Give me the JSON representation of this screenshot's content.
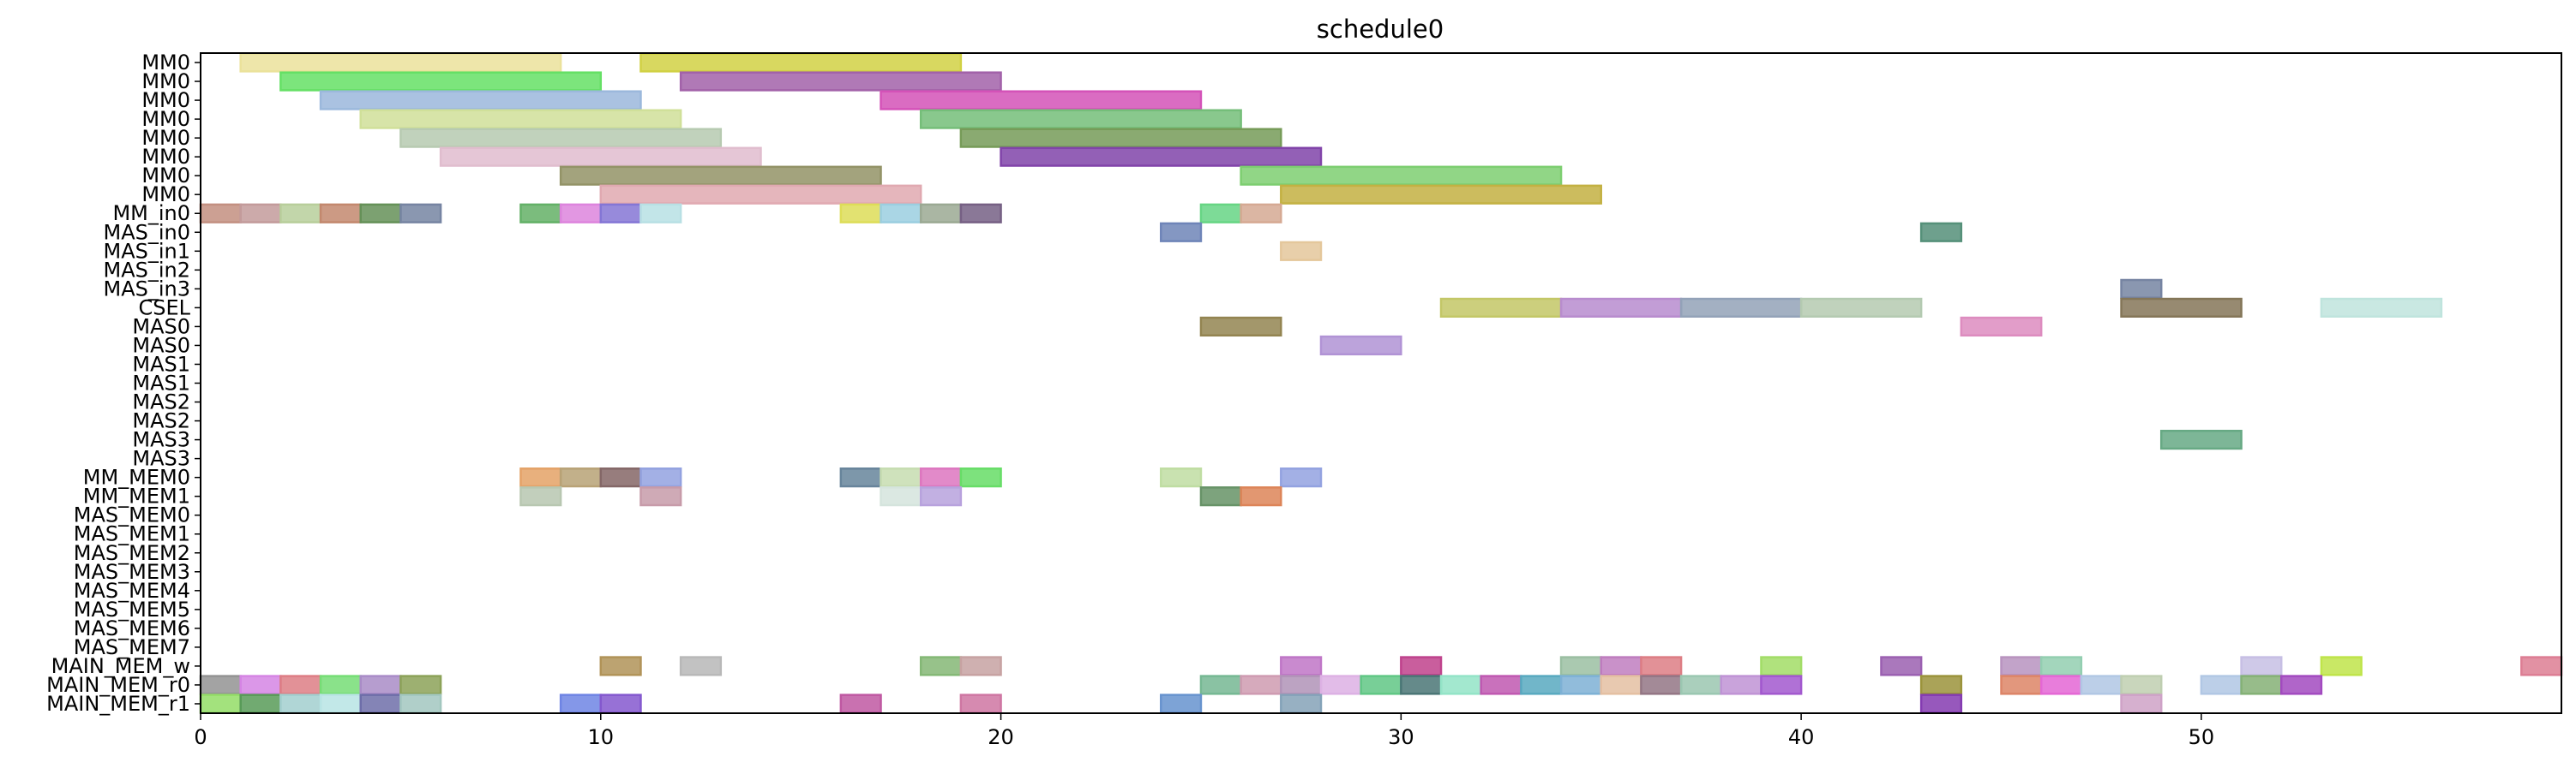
{
  "chart_data": {
    "type": "gantt",
    "title": "schedule0",
    "xlabel": "",
    "ylabel": "",
    "xlim": [
      0,
      59
    ],
    "x_ticks": [
      0,
      10,
      20,
      30,
      40,
      50
    ],
    "rows": [
      "MM0",
      "MM0",
      "MM0",
      "MM0",
      "MM0",
      "MM0",
      "MM0",
      "MM0",
      "MM_in0",
      "MAS_in0",
      "MAS_in1",
      "MAS_in2",
      "MAS_in3",
      "CSEL",
      "MAS0",
      "MAS0",
      "MAS1",
      "MAS1",
      "MAS2",
      "MAS2",
      "MAS3",
      "MAS3",
      "MM_MEM0",
      "MM_MEM1",
      "MAS_MEM0",
      "MAS_MEM1",
      "MAS_MEM2",
      "MAS_MEM3",
      "MAS_MEM4",
      "MAS_MEM5",
      "MAS_MEM6",
      "MAS_MEM7",
      "MAIN_MEM_w",
      "MAIN_MEM_r0",
      "MAIN_MEM_r1"
    ],
    "tasks": [
      {
        "row": 0,
        "start": 1,
        "end": 9,
        "color": "#fff6a8"
      },
      {
        "row": 0,
        "start": 11,
        "end": 19,
        "color": "#e3e34a"
      },
      {
        "row": 1,
        "start": 2,
        "end": 10,
        "color": "#6ef46e"
      },
      {
        "row": 1,
        "start": 12,
        "end": 20,
        "color": "#b06ab8"
      },
      {
        "row": 2,
        "start": 3,
        "end": 11,
        "color": "#a9c8ef"
      },
      {
        "row": 2,
        "start": 17,
        "end": 25,
        "color": "#e659c8"
      },
      {
        "row": 3,
        "start": 4,
        "end": 12,
        "color": "#e2f3a6"
      },
      {
        "row": 3,
        "start": 18,
        "end": 26,
        "color": "#7fcf84"
      },
      {
        "row": 4,
        "start": 5,
        "end": 13,
        "color": "#c7dcc0"
      },
      {
        "row": 4,
        "start": 19,
        "end": 27,
        "color": "#80a860"
      },
      {
        "row": 5,
        "start": 6,
        "end": 14,
        "color": "#f4cde0"
      },
      {
        "row": 5,
        "start": 20,
        "end": 28,
        "color": "#8c4ab8"
      },
      {
        "row": 6,
        "start": 9,
        "end": 17,
        "color": "#a0a070"
      },
      {
        "row": 6,
        "start": 26,
        "end": 34,
        "color": "#88e07a"
      },
      {
        "row": 7,
        "start": 10,
        "end": 18,
        "color": "#f4b8c0"
      },
      {
        "row": 7,
        "start": 27,
        "end": 35,
        "color": "#d4c048"
      },
      {
        "row": 8,
        "start": 0,
        "end": 1,
        "color": "#d49c8c"
      },
      {
        "row": 8,
        "start": 1,
        "end": 2,
        "color": "#d4a8a8"
      },
      {
        "row": 8,
        "start": 2,
        "end": 3,
        "color": "#c8e0a8"
      },
      {
        "row": 8,
        "start": 3,
        "end": 4,
        "color": "#d49478"
      },
      {
        "row": 8,
        "start": 4,
        "end": 5,
        "color": "#6e9e60"
      },
      {
        "row": 8,
        "start": 5,
        "end": 6,
        "color": "#8090b0"
      },
      {
        "row": 8,
        "start": 8,
        "end": 9,
        "color": "#6cc070"
      },
      {
        "row": 8,
        "start": 9,
        "end": 10,
        "color": "#f090f0"
      },
      {
        "row": 8,
        "start": 10,
        "end": 11,
        "color": "#9080e8"
      },
      {
        "row": 8,
        "start": 11,
        "end": 12,
        "color": "#c8f4f8"
      },
      {
        "row": 8,
        "start": 16,
        "end": 17,
        "color": "#f0f060"
      },
      {
        "row": 8,
        "start": 17,
        "end": 18,
        "color": "#a8e0f4"
      },
      {
        "row": 8,
        "start": 18,
        "end": 19,
        "color": "#a8b8a0"
      },
      {
        "row": 8,
        "start": 19,
        "end": 20,
        "color": "#806890"
      },
      {
        "row": 8,
        "start": 25,
        "end": 26,
        "color": "#70e890"
      },
      {
        "row": 8,
        "start": 26,
        "end": 27,
        "color": "#e8b8a0"
      },
      {
        "row": 9,
        "start": 24,
        "end": 25,
        "color": "#7890c8"
      },
      {
        "row": 9,
        "start": 43,
        "end": 44,
        "color": "#5c9c84"
      },
      {
        "row": 10,
        "start": 27,
        "end": 28,
        "color": "#f8d8a8"
      },
      {
        "row": 12,
        "start": 48,
        "end": 49,
        "color": "#8090b0"
      },
      {
        "row": 13,
        "start": 31,
        "end": 34,
        "color": "#d4d870"
      },
      {
        "row": 13,
        "start": 34,
        "end": 37,
        "color": "#c898e0"
      },
      {
        "row": 13,
        "start": 37,
        "end": 40,
        "color": "#a0b0c8"
      },
      {
        "row": 13,
        "start": 40,
        "end": 43,
        "color": "#c4dcc0"
      },
      {
        "row": 13,
        "start": 48,
        "end": 51,
        "color": "#908060"
      },
      {
        "row": 13,
        "start": 53,
        "end": 56,
        "color": "#d0f8f0"
      },
      {
        "row": 14,
        "start": 25,
        "end": 27,
        "color": "#a09058"
      },
      {
        "row": 14,
        "start": 44,
        "end": 46,
        "color": "#f098d0"
      },
      {
        "row": 15,
        "start": 28,
        "end": 30,
        "color": "#c0a0e8"
      },
      {
        "row": 20,
        "start": 49,
        "end": 51,
        "color": "#70b890"
      },
      {
        "row": 22,
        "start": 8,
        "end": 9,
        "color": "#f8b070"
      },
      {
        "row": 22,
        "start": 9,
        "end": 10,
        "color": "#c8b080"
      },
      {
        "row": 22,
        "start": 10,
        "end": 11,
        "color": "#907070"
      },
      {
        "row": 22,
        "start": 11,
        "end": 12,
        "color": "#a0b0f4"
      },
      {
        "row": 22,
        "start": 16,
        "end": 17,
        "color": "#7090a8"
      },
      {
        "row": 22,
        "start": 17,
        "end": 18,
        "color": "#d8f0c0"
      },
      {
        "row": 22,
        "start": 18,
        "end": 19,
        "color": "#f080d0"
      },
      {
        "row": 22,
        "start": 19,
        "end": 20,
        "color": "#70f070"
      },
      {
        "row": 22,
        "start": 24,
        "end": 25,
        "color": "#d0f0b0"
      },
      {
        "row": 22,
        "start": 27,
        "end": 28,
        "color": "#a0b0f4"
      },
      {
        "row": 23,
        "start": 8,
        "end": 9,
        "color": "#c8d8c0"
      },
      {
        "row": 23,
        "start": 11,
        "end": 12,
        "color": "#d8a8b8"
      },
      {
        "row": 23,
        "start": 17,
        "end": 18,
        "color": "#e8f8f0"
      },
      {
        "row": 23,
        "start": 18,
        "end": 19,
        "color": "#c8b0f0"
      },
      {
        "row": 23,
        "start": 25,
        "end": 26,
        "color": "#70a070"
      },
      {
        "row": 23,
        "start": 26,
        "end": 27,
        "color": "#f09060"
      },
      {
        "row": 32,
        "start": 10,
        "end": 11,
        "color": "#c0a060"
      },
      {
        "row": 32,
        "start": 12,
        "end": 13,
        "color": "#c8c8c8"
      },
      {
        "row": 32,
        "start": 18,
        "end": 19,
        "color": "#90c880"
      },
      {
        "row": 32,
        "start": 19,
        "end": 20,
        "color": "#d8b0b0"
      },
      {
        "row": 32,
        "start": 27,
        "end": 28,
        "color": "#d080d8"
      },
      {
        "row": 32,
        "start": 30,
        "end": 31,
        "color": "#d04898"
      },
      {
        "row": 32,
        "start": 34,
        "end": 35,
        "color": "#a8d0b0"
      },
      {
        "row": 32,
        "start": 35,
        "end": 36,
        "color": "#d088d0"
      },
      {
        "row": 32,
        "start": 36,
        "end": 37,
        "color": "#f08890"
      },
      {
        "row": 32,
        "start": 39,
        "end": 40,
        "color": "#b0f070"
      },
      {
        "row": 32,
        "start": 42,
        "end": 43,
        "color": "#a868c0"
      },
      {
        "row": 32,
        "start": 45,
        "end": 46,
        "color": "#c8a0d0"
      },
      {
        "row": 32,
        "start": 46,
        "end": 47,
        "color": "#a0e0c0"
      },
      {
        "row": 32,
        "start": 51,
        "end": 52,
        "color": "#d8d0f8"
      },
      {
        "row": 32,
        "start": 53,
        "end": 54,
        "color": "#d0f850"
      },
      {
        "row": 32,
        "start": 58,
        "end": 59,
        "color": "#f088a0"
      },
      {
        "row": 33,
        "start": 0,
        "end": 1,
        "color": "#a0a0a0"
      },
      {
        "row": 33,
        "start": 1,
        "end": 2,
        "color": "#e890f8"
      },
      {
        "row": 33,
        "start": 2,
        "end": 3,
        "color": "#f08890"
      },
      {
        "row": 33,
        "start": 3,
        "end": 4,
        "color": "#80f080"
      },
      {
        "row": 33,
        "start": 4,
        "end": 5,
        "color": "#b898d8"
      },
      {
        "row": 33,
        "start": 5,
        "end": 6,
        "color": "#98b060"
      },
      {
        "row": 33,
        "start": 25,
        "end": 26,
        "color": "#80c8a0"
      },
      {
        "row": 33,
        "start": 26,
        "end": 27,
        "color": "#e0a8c0"
      },
      {
        "row": 33,
        "start": 27,
        "end": 28,
        "color": "#c0a0c8"
      },
      {
        "row": 33,
        "start": 28,
        "end": 29,
        "color": "#f0c0f8"
      },
      {
        "row": 33,
        "start": 29,
        "end": 30,
        "color": "#68d890"
      },
      {
        "row": 33,
        "start": 30,
        "end": 31,
        "color": "#508080"
      },
      {
        "row": 33,
        "start": 31,
        "end": 32,
        "color": "#a0f8d8"
      },
      {
        "row": 33,
        "start": 32,
        "end": 33,
        "color": "#d060c0"
      },
      {
        "row": 33,
        "start": 33,
        "end": 34,
        "color": "#60b8d0"
      },
      {
        "row": 33,
        "start": 34,
        "end": 35,
        "color": "#88c0e8"
      },
      {
        "row": 33,
        "start": 35,
        "end": 36,
        "color": "#f8d0b0"
      },
      {
        "row": 33,
        "start": 36,
        "end": 37,
        "color": "#a08090"
      },
      {
        "row": 33,
        "start": 37,
        "end": 38,
        "color": "#a8d8c0"
      },
      {
        "row": 33,
        "start": 38,
        "end": 39,
        "color": "#d0a0e8"
      },
      {
        "row": 33,
        "start": 39,
        "end": 40,
        "color": "#b060e0"
      },
      {
        "row": 33,
        "start": 43,
        "end": 44,
        "color": "#a8a040"
      },
      {
        "row": 33,
        "start": 45,
        "end": 46,
        "color": "#f09070"
      },
      {
        "row": 33,
        "start": 46,
        "end": 47,
        "color": "#f870e8"
      },
      {
        "row": 33,
        "start": 47,
        "end": 48,
        "color": "#c0d8f8"
      },
      {
        "row": 33,
        "start": 48,
        "end": 49,
        "color": "#d0e0c0"
      },
      {
        "row": 33,
        "start": 50,
        "end": 51,
        "color": "#c0d8f8"
      },
      {
        "row": 33,
        "start": 51,
        "end": 52,
        "color": "#90c080"
      },
      {
        "row": 33,
        "start": 52,
        "end": 53,
        "color": "#b050d0"
      },
      {
        "row": 34,
        "start": 0,
        "end": 1,
        "color": "#a0f070"
      },
      {
        "row": 34,
        "start": 1,
        "end": 2,
        "color": "#60a860"
      },
      {
        "row": 34,
        "start": 2,
        "end": 3,
        "color": "#b0e0e0"
      },
      {
        "row": 34,
        "start": 3,
        "end": 4,
        "color": "#c8f8f8"
      },
      {
        "row": 34,
        "start": 4,
        "end": 5,
        "color": "#7878b8"
      },
      {
        "row": 34,
        "start": 5,
        "end": 6,
        "color": "#b0d8d0"
      },
      {
        "row": 34,
        "start": 9,
        "end": 10,
        "color": "#7890f8"
      },
      {
        "row": 34,
        "start": 10,
        "end": 11,
        "color": "#9060e0"
      },
      {
        "row": 34,
        "start": 16,
        "end": 17,
        "color": "#d060b0"
      },
      {
        "row": 34,
        "start": 19,
        "end": 20,
        "color": "#e080b0"
      },
      {
        "row": 34,
        "start": 24,
        "end": 25,
        "color": "#70a0e0"
      },
      {
        "row": 34,
        "start": 27,
        "end": 28,
        "color": "#90b0c8"
      },
      {
        "row": 34,
        "start": 43,
        "end": 44,
        "color": "#9040c0"
      },
      {
        "row": 34,
        "start": 48,
        "end": 49,
        "color": "#e0b0d8"
      }
    ]
  }
}
